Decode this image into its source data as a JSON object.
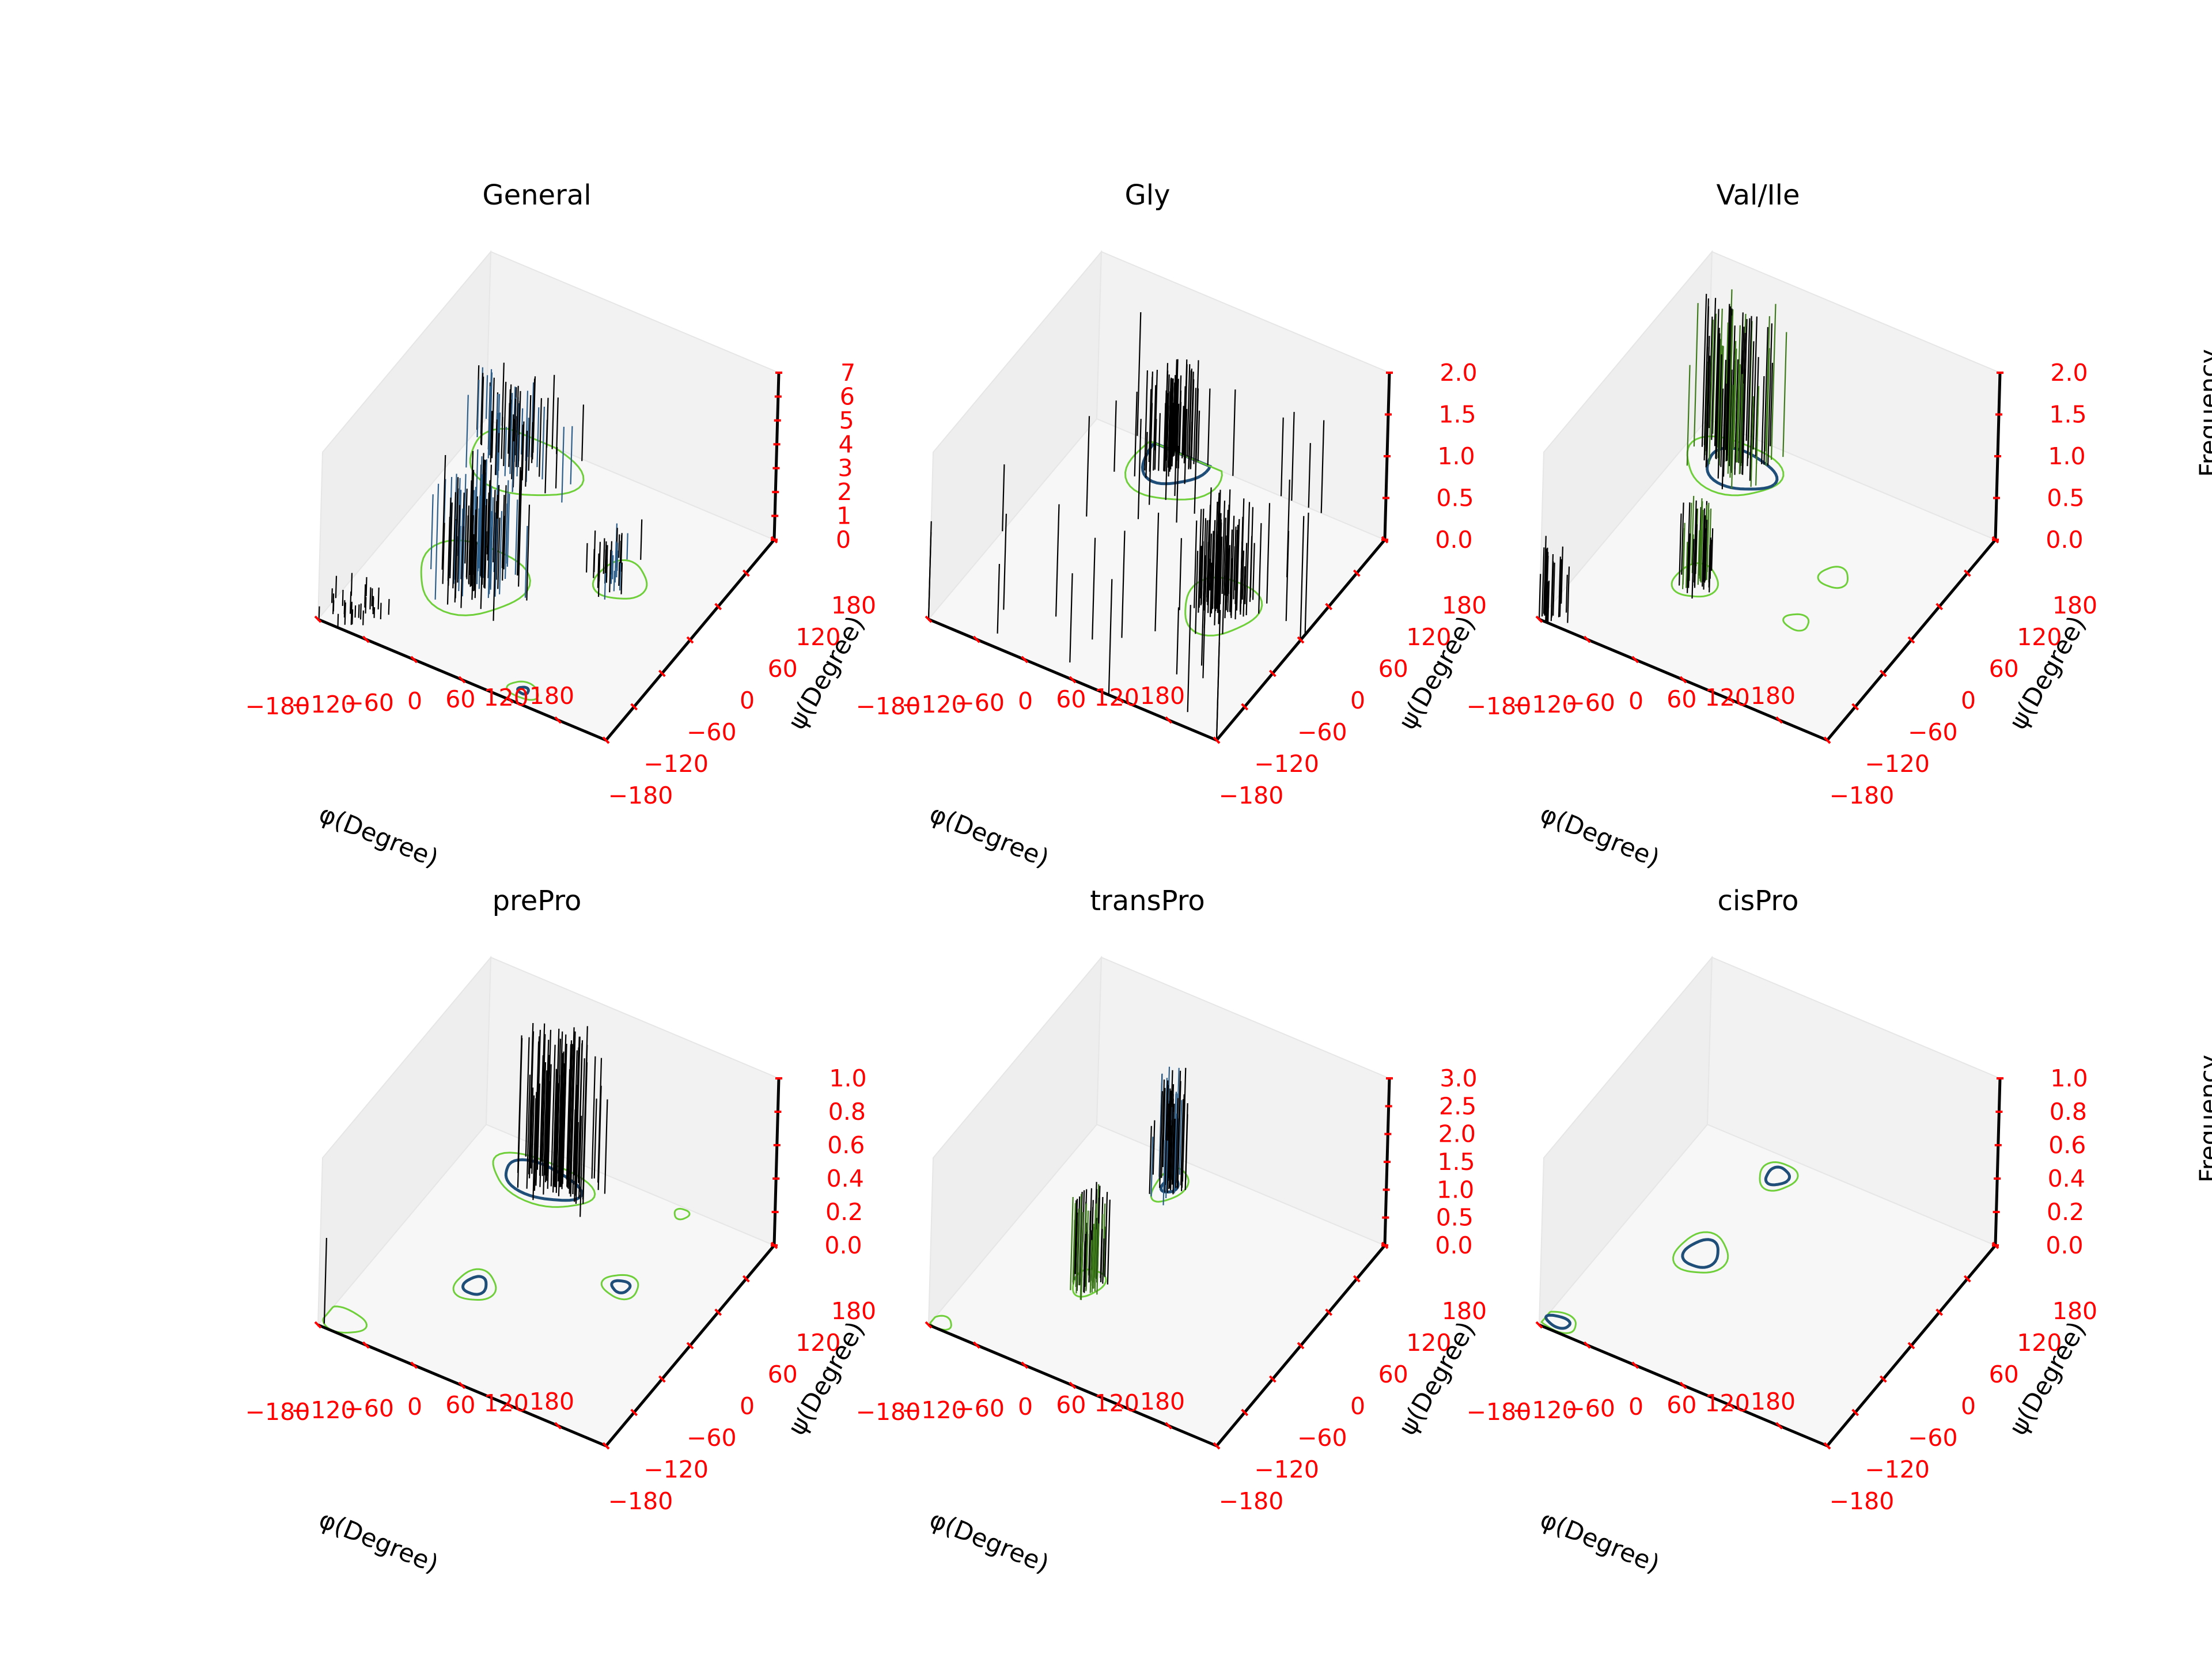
{
  "figure": {
    "x_tick_labels": [
      "−180",
      "−120",
      "−60",
      "0",
      "60",
      "120",
      "180"
    ],
    "y_tick_labels": [
      "−180",
      "−120",
      "−60",
      "0",
      "60",
      "120",
      "180"
    ],
    "xlabel": "φ(Degree)",
    "ylabel": "ψ(Degree)",
    "zlabel": "Frequency"
  },
  "colors": {
    "pane_face": "#f2f2f2",
    "grid": "#e3e3e3",
    "axis_line": "#000000",
    "tick_label": "#ff0000",
    "spike": "#000000",
    "spike_green": "#3d7a1a",
    "contour_outer": "#6fcf3a",
    "contour_inner": "#1f4e79"
  },
  "chart_data": [
    {
      "type": "3d-bar-spikes-with-contours",
      "title": "General",
      "xlabel": "φ(Degree)",
      "ylabel": "ψ(Degree)",
      "zlabel": "",
      "xlim": [
        -180,
        180
      ],
      "ylim": [
        -180,
        180
      ],
      "zlim": [
        0,
        7
      ],
      "z_ticks": [
        "0",
        "1",
        "2",
        "3",
        "4",
        "5",
        "6",
        "7"
      ],
      "clusters": [
        {
          "phi": -65,
          "psi": -40,
          "peak": 5.2,
          "spread_phi": 24,
          "spread_psi": 20,
          "count": 90,
          "tint": "blue"
        },
        {
          "phi": -120,
          "psi": 135,
          "peak": 3.6,
          "spread_phi": 26,
          "spread_psi": 22,
          "count": 70,
          "tint": "blue"
        },
        {
          "phi": 60,
          "psi": 40,
          "peak": 1.8,
          "spread_phi": 12,
          "spread_psi": 14,
          "count": 34,
          "tint": "blue"
        },
        {
          "phi": -150,
          "psi": -150,
          "peak": 1.0,
          "spread_phi": 18,
          "spread_psi": 18,
          "count": 30,
          "tint": "none"
        }
      ],
      "contours": [
        {
          "phi": -70,
          "psi": -40,
          "rx": 60,
          "ry": 55,
          "level": "outer"
        },
        {
          "phi": -110,
          "psi": 140,
          "rx": 65,
          "ry": 45,
          "level": "outer"
        },
        {
          "phi": 70,
          "psi": 40,
          "rx": 28,
          "ry": 30,
          "level": "outer"
        },
        {
          "phi": 65,
          "psi": -160,
          "rx": 18,
          "ry": 12,
          "level": "outer"
        },
        {
          "phi": 65,
          "psi": -160,
          "rx": 6,
          "ry": 5,
          "level": "inner"
        }
      ]
    },
    {
      "type": "3d-bar-spikes-with-contours",
      "title": "Gly",
      "xlabel": "φ(Degree)",
      "ylabel": "ψ(Degree)",
      "zlabel": "",
      "xlim": [
        -180,
        180
      ],
      "ylim": [
        -180,
        180
      ],
      "zlim": [
        0,
        2.0
      ],
      "z_ticks": [
        "0.0",
        "0.5",
        "1.0",
        "1.5",
        "2.0"
      ],
      "clusters": [
        {
          "phi": 80,
          "psi": 0,
          "peak": 1.3,
          "spread_phi": 16,
          "spread_psi": 18,
          "count": 70,
          "tint": "none"
        },
        {
          "phi": -75,
          "psi": 170,
          "peak": 1.2,
          "spread_phi": 14,
          "spread_psi": 18,
          "count": 60,
          "tint": "none"
        },
        {
          "phi": 0,
          "psi": 0,
          "peak": 1.6,
          "spread_phi": 150,
          "spread_psi": 150,
          "count": 40,
          "tint": "none"
        }
      ],
      "contours": [
        {
          "phi": 80,
          "psi": 0,
          "rx": 40,
          "ry": 45,
          "level": "outer"
        },
        {
          "phi": -75,
          "psi": 170,
          "rx": 35,
          "ry": 40,
          "level": "inner"
        },
        {
          "phi": -70,
          "psi": 160,
          "rx": 50,
          "ry": 55,
          "level": "outer"
        }
      ]
    },
    {
      "type": "3d-bar-spikes-with-contours",
      "title": "Val/Ile",
      "xlabel": "φ(Degree)",
      "ylabel": "ψ(Degree)",
      "zlabel": "Frequency",
      "xlim": [
        -180,
        180
      ],
      "ylim": [
        -180,
        180
      ],
      "zlim": [
        0,
        2.0
      ],
      "z_ticks": [
        "0.0",
        "0.5",
        "1.0",
        "1.5",
        "2.0"
      ],
      "clusters": [
        {
          "phi": -125,
          "psi": 135,
          "peak": 1.9,
          "spread_phi": 22,
          "spread_psi": 18,
          "count": 80,
          "tint": "green"
        },
        {
          "phi": -65,
          "psi": -42,
          "peak": 1.0,
          "spread_phi": 10,
          "spread_psi": 12,
          "count": 40,
          "tint": "green"
        },
        {
          "phi": -170,
          "psi": -170,
          "peak": 1.0,
          "spread_phi": 8,
          "spread_psi": 10,
          "count": 18,
          "tint": "none"
        }
      ],
      "contours": [
        {
          "phi": -120,
          "psi": 130,
          "rx": 55,
          "ry": 40,
          "level": "outer"
        },
        {
          "phi": -110,
          "psi": 130,
          "rx": 40,
          "ry": 28,
          "level": "inner"
        },
        {
          "phi": -65,
          "psi": -42,
          "rx": 24,
          "ry": 26,
          "level": "outer"
        },
        {
          "phi": 60,
          "psi": 40,
          "rx": 16,
          "ry": 16,
          "level": "outer"
        },
        {
          "phi": 60,
          "psi": -40,
          "rx": 14,
          "ry": 12,
          "level": "outer"
        }
      ]
    },
    {
      "type": "3d-bar-spikes-with-contours",
      "title": "prePro",
      "xlabel": "φ(Degree)",
      "ylabel": "ψ(Degree)",
      "zlabel": "",
      "xlim": [
        -180,
        180
      ],
      "ylim": [
        -180,
        180
      ],
      "zlim": [
        0,
        1.0
      ],
      "z_ticks": [
        "0.0",
        "0.2",
        "0.4",
        "0.6",
        "0.8",
        "1.0"
      ],
      "clusters": [
        {
          "phi": -70,
          "psi": 140,
          "peak": 1.0,
          "spread_phi": 24,
          "spread_psi": 14,
          "count": 80,
          "tint": "none"
        },
        {
          "phi": -175,
          "psi": -175,
          "peak": 0.9,
          "spread_phi": 1,
          "spread_psi": 1,
          "count": 1,
          "tint": "none"
        }
      ],
      "contours": [
        {
          "phi": -85,
          "psi": 135,
          "rx": 60,
          "ry": 32,
          "level": "outer"
        },
        {
          "phi": -85,
          "psi": 135,
          "rx": 45,
          "ry": 24,
          "level": "inner"
        },
        {
          "phi": -65,
          "psi": -40,
          "rx": 22,
          "ry": 24,
          "level": "outer"
        },
        {
          "phi": -65,
          "psi": -40,
          "rx": 12,
          "ry": 14,
          "level": "inner"
        },
        {
          "phi": 70,
          "psi": 40,
          "rx": 20,
          "ry": 18,
          "level": "outer"
        },
        {
          "phi": 70,
          "psi": 40,
          "rx": 10,
          "ry": 9,
          "level": "inner"
        },
        {
          "phi": 70,
          "psi": 170,
          "rx": 8,
          "ry": 8,
          "level": "outer"
        },
        {
          "phi": -160,
          "psi": -160,
          "rx": 25,
          "ry": 18,
          "level": "outer"
        }
      ]
    },
    {
      "type": "3d-bar-spikes-with-contours",
      "title": "transPro",
      "xlabel": "φ(Degree)",
      "ylabel": "ψ(Degree)",
      "zlabel": "",
      "xlim": [
        -180,
        180
      ],
      "ylim": [
        -180,
        180
      ],
      "zlim": [
        0,
        3.0
      ],
      "z_ticks": [
        "0.0",
        "0.5",
        "1.0",
        "1.5",
        "2.0",
        "2.5",
        "3.0"
      ],
      "clusters": [
        {
          "phi": -65,
          "psi": -35,
          "peak": 1.7,
          "spread_phi": 8,
          "spread_psi": 12,
          "count": 60,
          "tint": "green"
        },
        {
          "phi": -65,
          "psi": 140,
          "peak": 2.1,
          "spread_phi": 8,
          "spread_psi": 12,
          "count": 50,
          "tint": "blue"
        }
      ],
      "contours": [
        {
          "phi": -65,
          "psi": -35,
          "rx": 16,
          "ry": 22,
          "level": "outer"
        },
        {
          "phi": -65,
          "psi": 140,
          "rx": 16,
          "ry": 28,
          "level": "outer"
        },
        {
          "phi": -65,
          "psi": 140,
          "rx": 8,
          "ry": 12,
          "level": "inner"
        },
        {
          "phi": -170,
          "psi": -170,
          "rx": 12,
          "ry": 10,
          "level": "outer"
        }
      ]
    },
    {
      "type": "3d-bar-spikes-with-contours",
      "title": "cisPro",
      "xlabel": "φ(Degree)",
      "ylabel": "ψ(Degree)",
      "zlabel": "Frequency",
      "xlim": [
        -180,
        180
      ],
      "ylim": [
        -180,
        180
      ],
      "zlim": [
        0,
        1.0
      ],
      "z_ticks": [
        "0.0",
        "0.2",
        "0.4",
        "0.6",
        "0.8",
        "1.0"
      ],
      "clusters": [],
      "contours": [
        {
          "phi": -75,
          "psi": 150,
          "rx": 20,
          "ry": 22,
          "level": "outer"
        },
        {
          "phi": -75,
          "psi": 150,
          "rx": 12,
          "ry": 14,
          "level": "inner"
        },
        {
          "phi": -85,
          "psi": 5,
          "rx": 28,
          "ry": 32,
          "level": "outer"
        },
        {
          "phi": -85,
          "psi": 5,
          "rx": 18,
          "ry": 22,
          "level": "inner"
        },
        {
          "phi": -165,
          "psi": -165,
          "rx": 22,
          "ry": 14,
          "level": "outer"
        },
        {
          "phi": -165,
          "psi": -165,
          "rx": 14,
          "ry": 8,
          "level": "inner"
        }
      ]
    }
  ]
}
